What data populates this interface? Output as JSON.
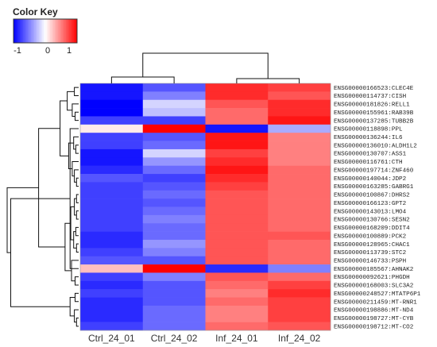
{
  "chart_data": {
    "type": "heatmap",
    "color_key": {
      "title": "Color Key",
      "ticks": [
        "-1",
        "0",
        "1"
      ],
      "colors": {
        "low": "#0000ff",
        "mid": "#ffffff",
        "high": "#ff0000"
      },
      "range": [
        -1.2,
        1.2
      ]
    },
    "columns": [
      "Ctrl_24_01",
      "Ctrl_24_02",
      "Inf_24_01",
      "Inf_24_02"
    ],
    "rows": [
      "ENSG00000166523:CLEC4E",
      "ENSG00000114737:CISH",
      "ENSG00000181826:RELL1",
      "ENSG00000155961:RAB39B",
      "ENSG00000137285:TUBB2B",
      "ENSG00000118898:PPL",
      "ENSG00000136244:IL6",
      "ENSG00000136010:ALDH1L2",
      "ENSG00000130707:ASS1",
      "ENSG00000116761:CTH",
      "ENSG00000197714:ZNF460",
      "ENSG00000140044:JDP2",
      "ENSG00000163285:GABRG1",
      "ENSG00000100867:DHRS2",
      "ENSG00000166123:GPT2",
      "ENSG00000143013:LMO4",
      "ENSG00000130766:SESN2",
      "ENSG00000168209:DDIT4",
      "ENSG00000100889:PCK2",
      "ENSG00000128965:CHAC1",
      "ENSG00000113739:STC2",
      "ENSG00000146733:PSPH",
      "ENSG00000185567:AHNAK2",
      "ENSG00000092621:PHGDH",
      "ENSG00000168003:SLC3A2",
      "ENSG00000248527:MTATP6P1",
      "ENSG00000211459:MT-RNR1",
      "ENSG00000198886:MT-ND4",
      "ENSG00000198727:MT-CYB",
      "ENSG00000198712:MT-CO2"
    ],
    "values": [
      [
        -1.1,
        -0.8,
        1.0,
        0.9
      ],
      [
        -1.1,
        -0.6,
        1.0,
        0.8
      ],
      [
        -1.2,
        -0.2,
        0.8,
        1.0
      ],
      [
        -1.2,
        -0.3,
        0.7,
        1.0
      ],
      [
        -0.9,
        -0.9,
        0.7,
        1.1
      ],
      [
        0.1,
        1.3,
        -1.1,
        -0.4
      ],
      [
        -0.9,
        -0.8,
        1.1,
        0.6
      ],
      [
        -0.9,
        -0.7,
        1.1,
        0.6
      ],
      [
        -1.1,
        -0.2,
        0.9,
        0.6
      ],
      [
        -1.1,
        -0.5,
        1.0,
        0.6
      ],
      [
        -1.0,
        -0.7,
        1.1,
        0.7
      ],
      [
        -0.8,
        -0.9,
        1.0,
        0.7
      ],
      [
        -0.9,
        -0.8,
        0.9,
        0.7
      ],
      [
        -0.9,
        -0.7,
        0.8,
        0.7
      ],
      [
        -0.9,
        -0.8,
        0.8,
        0.7
      ],
      [
        -0.9,
        -0.7,
        0.8,
        0.7
      ],
      [
        -0.9,
        -0.6,
        0.8,
        0.7
      ],
      [
        -0.9,
        -0.7,
        0.8,
        0.7
      ],
      [
        -1.0,
        -0.7,
        0.8,
        0.8
      ],
      [
        -1.0,
        -0.5,
        0.8,
        0.7
      ],
      [
        -0.9,
        -0.6,
        0.8,
        0.7
      ],
      [
        -0.8,
        -0.8,
        0.8,
        0.7
      ],
      [
        0.3,
        1.3,
        -1.0,
        -0.6
      ],
      [
        -0.9,
        -0.6,
        0.8,
        0.7
      ],
      [
        -1.0,
        -0.8,
        0.7,
        0.9
      ],
      [
        -0.9,
        -0.8,
        0.6,
        1.0
      ],
      [
        -1.0,
        -0.8,
        0.7,
        0.9
      ],
      [
        -1.0,
        -0.7,
        0.6,
        0.9
      ],
      [
        -1.0,
        -0.7,
        0.6,
        0.9
      ],
      [
        -0.9,
        -0.7,
        0.7,
        0.8
      ]
    ],
    "col_dendrogram": true,
    "row_dendrogram": true
  }
}
